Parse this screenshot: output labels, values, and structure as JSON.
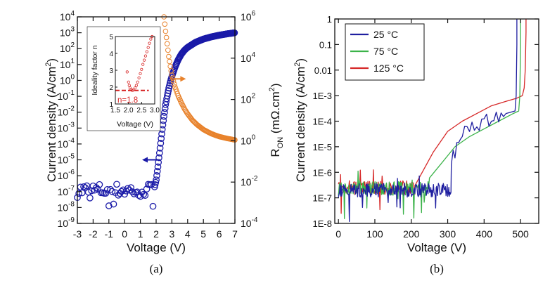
{
  "chart_data": [
    {
      "panel_id": "a",
      "caption": "(a)",
      "type": "scatter",
      "xlabel": "Voltage (V)",
      "ylabel": "Current density (A/cm²)",
      "ylabel_parts": {
        "text": "Current density  (A/cm",
        "sup": "2",
        "close": ")"
      },
      "y2label_parts": {
        "r": "R",
        "sub": "ON",
        "rest": " (mΩ.cm",
        "sup": "2",
        "close": ")"
      },
      "xlim": [
        -3,
        7
      ],
      "ylim": [
        1e-09,
        10000.0
      ],
      "y2lim": [
        0.0001,
        1000000.0
      ],
      "yscale": "log",
      "y2scale": "log",
      "grid": false,
      "x_ticks": [
        "-3",
        "-2",
        "-1",
        "0",
        "1",
        "2",
        "3",
        "4",
        "5",
        "6",
        "7"
      ],
      "y_tick_exponents": [
        "-9",
        "-8",
        "-7",
        "-6",
        "-5",
        "-4",
        "-3",
        "-2",
        "-1",
        "0",
        "1",
        "2",
        "3",
        "4"
      ],
      "y2_tick_exponents": [
        "-4",
        "-2",
        "0",
        "2",
        "4",
        "6"
      ],
      "series": [
        {
          "axis": "left",
          "color": "#1a1aa8",
          "marker": "open-circle",
          "noise_floor": {
            "x_range": [
              -3,
              1.9
            ],
            "median": 1.2e-07,
            "min": 6e-09,
            "max": 4e-07
          },
          "curve": {
            "x": [
              1.9,
              2.0,
              2.1,
              2.2,
              2.3,
              2.4,
              2.5,
              2.6,
              2.7,
              2.8,
              2.9,
              3.0,
              3.2,
              3.4,
              3.6,
              3.8,
              4.0,
              4.5,
              5.0,
              5.5,
              6.0,
              6.5,
              7.0
            ],
            "y": [
              2e-07,
              5e-07,
              3e-06,
              2e-05,
              0.00015,
              0.001,
              0.006,
              0.03,
              0.1,
              0.3,
              0.8,
              1.8,
              7,
              20,
              45,
              80,
              120,
              250,
              400,
              550,
              700,
              850,
              1000
            ]
          }
        },
        {
          "axis": "right",
          "color": "#e8822b",
          "marker": "open-circle",
          "curve": {
            "x": [
              2.5,
              2.6,
              2.7,
              2.8,
              2.9,
              3.0,
              3.2,
              3.4,
              3.6,
              3.8,
              4.0,
              4.3,
              4.6,
              5.0,
              5.5,
              6.0,
              6.5,
              7.0
            ],
            "y": [
              1000000.0,
              200000.0,
              50000.0,
              12000.0,
              4000.0,
              1500.0,
              400,
              150,
              70,
              35,
              20,
              10,
              6,
              3.5,
              2.2,
              1.6,
              1.3,
              1.1
            ]
          }
        }
      ],
      "annotations": [
        {
          "kind": "arrow",
          "direction": "left",
          "color": "#1a1aa8",
          "at": {
            "x": 1.6,
            "y": 1e-05
          }
        },
        {
          "kind": "arrow",
          "direction": "right",
          "color": "#e8822b",
          "at": {
            "x": 3.4,
            "y": 1000.0
          }
        }
      ],
      "inset": {
        "type": "scatter",
        "xlabel": "Voltage (V)",
        "ylabel": "Ideality factor n",
        "xlim": [
          1.5,
          3.0
        ],
        "ylim": [
          1,
          5
        ],
        "x_ticks": [
          "1.5",
          "2.0",
          "2.5",
          "3.0"
        ],
        "y_ticks": [
          "1",
          "2",
          "3",
          "4",
          "5"
        ],
        "annotation": "n=1.8",
        "reference_line": {
          "y": 1.8,
          "color": "#d62020",
          "style": "dashed"
        },
        "series": [
          {
            "color": "#d62020",
            "marker": "open-circle",
            "x": [
              1.95,
              2.0,
              2.03,
              2.06,
              2.1,
              2.15,
              2.2,
              2.25,
              2.3,
              2.35,
              2.4,
              2.45,
              2.5,
              2.55,
              2.6,
              2.65,
              2.7,
              2.75,
              2.8,
              2.85,
              2.9
            ],
            "y": [
              2.9,
              2.3,
              2.1,
              1.95,
              1.85,
              1.8,
              1.85,
              1.95,
              2.1,
              2.3,
              2.55,
              2.8,
              3.05,
              3.35,
              3.6,
              3.85,
              4.1,
              4.35,
              4.6,
              4.85,
              5.0
            ]
          }
        ]
      }
    },
    {
      "panel_id": "b",
      "caption": "(b)",
      "type": "line",
      "xlabel": "Voltage (V)",
      "ylabel": "Current density (A/cm²)",
      "ylabel_parts": {
        "text": "Current density  (A/cm",
        "sup": "2",
        "close": ")"
      },
      "xlim": [
        -10,
        550
      ],
      "ylim": [
        1e-08,
        1
      ],
      "yscale": "log",
      "grid": false,
      "legend": "top-left",
      "x_ticks": [
        "0",
        "100",
        "200",
        "300",
        "400",
        "500"
      ],
      "y_ticks": [
        "1E-8",
        "1E-7",
        "1E-6",
        "1E-5",
        "1E-4",
        "1E-3",
        "0.01",
        "0.1",
        "1"
      ],
      "series": [
        {
          "name": "25 °C",
          "color": "#1f1fa0",
          "noise": {
            "x_range": [
              0,
              310
            ],
            "median": 2e-07,
            "spread": 6
          },
          "x": [
            310,
            340,
            380,
            420,
            460,
            485,
            488,
            490,
            490
          ],
          "y": [
            2e-06,
            2.5e-05,
            6e-05,
            0.0001,
            0.0002,
            0.00025,
            0.001,
            0.1,
            1
          ]
        },
        {
          "name": "75 °C",
          "color": "#3cb34a",
          "noise": {
            "x_range": [
              0,
              250
            ],
            "median": 2.3e-07,
            "spread": 4
          },
          "x": [
            250,
            280,
            320,
            360,
            400,
            440,
            480,
            495,
            498,
            500,
            500
          ],
          "y": [
            6e-07,
            2e-06,
            1e-05,
            2.5e-05,
            5e-05,
            0.0001,
            0.0002,
            0.00025,
            0.001,
            0.1,
            1
          ]
        },
        {
          "name": "125 °C",
          "color": "#d62828",
          "noise": {
            "x_range": [
              0,
              210
            ],
            "median": 2.5e-07,
            "spread": 3
          },
          "x": [
            210,
            230,
            260,
            300,
            340,
            380,
            420,
            460,
            490,
            505,
            510,
            513,
            515,
            515
          ],
          "y": [
            3e-07,
            1e-06,
            6e-06,
            4e-05,
            0.0001,
            0.0002,
            0.0004,
            0.0006,
            0.0008,
            0.001,
            0.002,
            0.01,
            0.3,
            1
          ]
        }
      ]
    }
  ]
}
